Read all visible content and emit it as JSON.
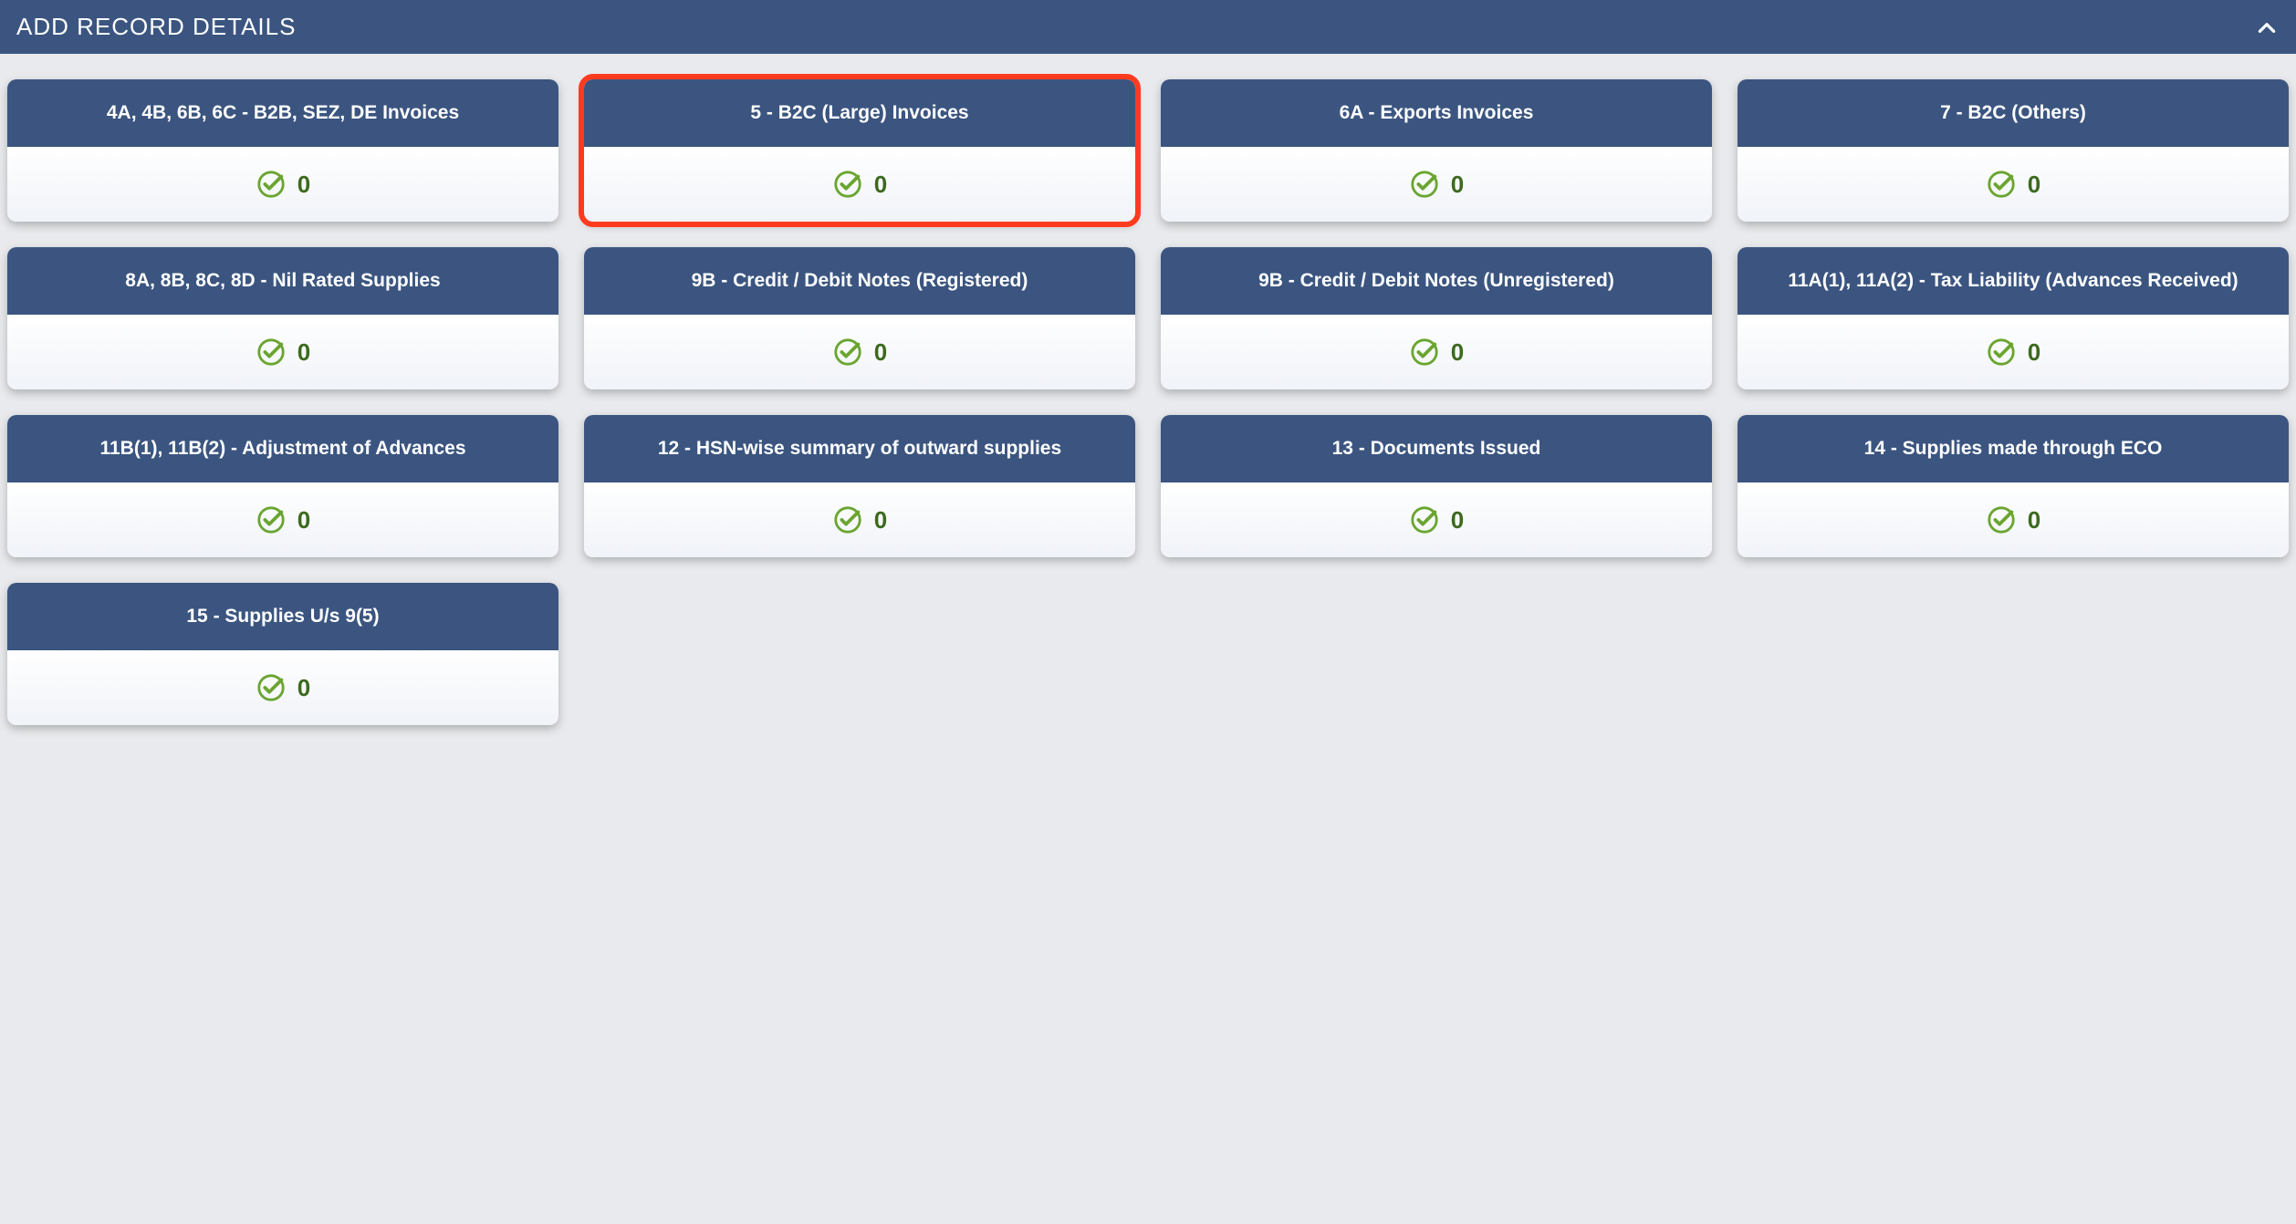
{
  "colors": {
    "header_bg": "#3b5580",
    "header_text": "#ffffff",
    "page_bg": "#e8eaed",
    "card_title_bg": "#3b5580",
    "card_title_text": "#ffffff",
    "card_body_bg_top": "#ffffff",
    "card_body_bg_bottom": "#f0f3f8",
    "check_color": "#6aa530",
    "count_color": "#3c6a1f",
    "highlight_border": "#ff3b1f"
  },
  "header": {
    "title": "ADD RECORD DETAILS"
  },
  "cards": [
    {
      "title": "4A, 4B, 6B, 6C - B2B, SEZ, DE Invoices",
      "count": 0,
      "highlighted": false
    },
    {
      "title": "5 - B2C (Large) Invoices",
      "count": 0,
      "highlighted": true
    },
    {
      "title": "6A - Exports Invoices",
      "count": 0,
      "highlighted": false
    },
    {
      "title": "7 - B2C (Others)",
      "count": 0,
      "highlighted": false
    },
    {
      "title": "8A, 8B, 8C, 8D - Nil Rated Supplies",
      "count": 0,
      "highlighted": false
    },
    {
      "title": "9B - Credit / Debit Notes (Registered)",
      "count": 0,
      "highlighted": false
    },
    {
      "title": "9B - Credit / Debit Notes (Unregistered)",
      "count": 0,
      "highlighted": false
    },
    {
      "title": "11A(1), 11A(2) - Tax Liability (Advances Received)",
      "count": 0,
      "highlighted": false
    },
    {
      "title": "11B(1), 11B(2) - Adjustment of Advances",
      "count": 0,
      "highlighted": false
    },
    {
      "title": "12 - HSN-wise summary of outward supplies",
      "count": 0,
      "highlighted": false
    },
    {
      "title": "13 - Documents Issued",
      "count": 0,
      "highlighted": false
    },
    {
      "title": "14 - Supplies made through ECO",
      "count": 0,
      "highlighted": false
    },
    {
      "title": "15 - Supplies U/s 9(5)",
      "count": 0,
      "highlighted": false
    }
  ]
}
